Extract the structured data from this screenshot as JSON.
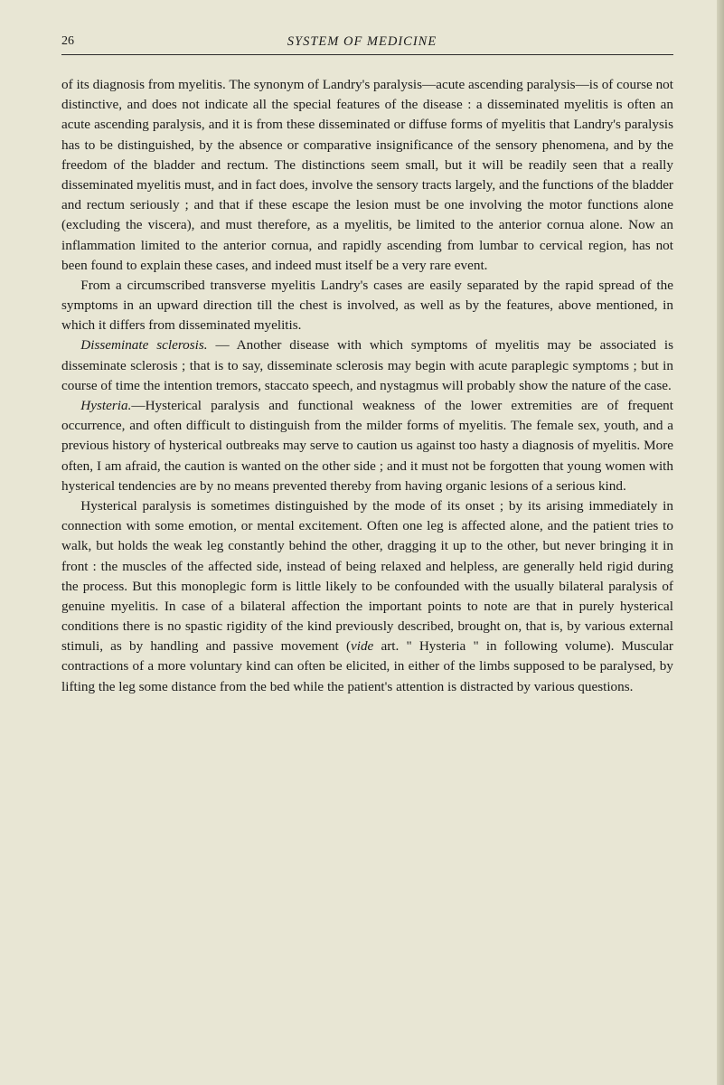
{
  "page": {
    "number": "26",
    "running_title": "SYSTEM OF MEDICINE"
  },
  "paragraphs": {
    "p1": "of its diagnosis from myelitis. The synonym of Landry's paralysis—acute ascending paralysis—is of course not distinctive, and does not indicate all the special features of the disease : a disseminated myelitis is often an acute ascending paralysis, and it is from these disseminated or diffuse forms of myelitis that Landry's paralysis has to be distinguished, by the absence or comparative insignificance of the sensory phenomena, and by the freedom of the bladder and rectum. The distinctions seem small, but it will be readily seen that a really disseminated myelitis must, and in fact does, involve the sensory tracts largely, and the functions of the bladder and rectum seriously ; and that if these escape the lesion must be one involving the motor functions alone (excluding the viscera), and must therefore, as a myelitis, be limited to the anterior cornua alone. Now an inflammation limited to the anterior cornua, and rapidly ascending from lumbar to cervical region, has not been found to explain these cases, and indeed must itself be a very rare event.",
    "p2": "From a circumscribed transverse myelitis Landry's cases are easily separated by the rapid spread of the symptoms in an upward direction till the chest is involved, as well as by the features, above mentioned, in which it differs from disseminated myelitis.",
    "p3_lead": "Disseminate sclerosis.",
    "p3": " — Another disease with which symptoms of myelitis may be associated is disseminate sclerosis ; that is to say, disseminate sclerosis may begin with acute paraplegic symptoms ; but in course of time the intention tremors, staccato speech, and nystagmus will probably show the nature of the case.",
    "p4_lead": "Hysteria.",
    "p4": "—Hysterical paralysis and functional weakness of the lower extremities are of frequent occurrence, and often difficult to distinguish from the milder forms of myelitis. The female sex, youth, and a previous history of hysterical outbreaks may serve to caution us against too hasty a diagnosis of myelitis. More often, I am afraid, the caution is wanted on the other side ; and it must not be forgotten that young women with hysterical tendencies are by no means prevented thereby from having organic lesions of a serious kind.",
    "p5a": "Hysterical paralysis is sometimes distinguished by the mode of its onset ; by its arising immediately in connection with some emotion, or mental excitement. Often one leg is affected alone, and the patient tries to walk, but holds the weak leg constantly behind the other, dragging it up to the other, but never bringing it in front : the muscles of the affected side, instead of being relaxed and helpless, are generally held rigid during the process. But this monoplegic form is little likely to be confounded with the usually bilateral paralysis of genuine myelitis. In case of a bilateral affection the important points to note are that in purely hysterical conditions there is no spastic rigidity of the kind previously described, brought on, that is, by various external stimuli, as by handling and passive movement (",
    "p5_vide": "vide",
    "p5b": " art. \" Hysteria \" in following volume). Muscular contractions of a more voluntary kind can often be elicited, in either of the limbs supposed to be paralysed, by lifting the leg some distance from the bed while the patient's attention is distracted by various questions."
  }
}
